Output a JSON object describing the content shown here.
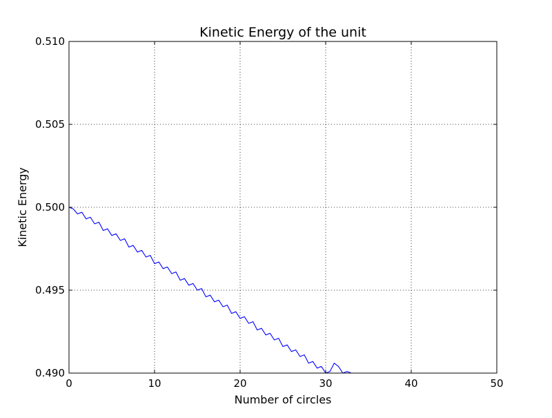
{
  "chart_data": {
    "type": "line",
    "title": "Kinetic Energy of the unit",
    "xlabel": "Number of circles",
    "ylabel": "Kinetic Energy",
    "xlim": [
      0,
      50
    ],
    "ylim": [
      0.49,
      0.51
    ],
    "x_ticks": [
      0,
      10,
      20,
      30,
      40,
      50
    ],
    "x_tick_labels": [
      "0",
      "10",
      "20",
      "30",
      "40",
      "50"
    ],
    "y_ticks": [
      0.49,
      0.495,
      0.5,
      0.505,
      0.51
    ],
    "y_tick_labels": [
      "0.490",
      "0.495",
      "0.500",
      "0.505",
      "0.510"
    ],
    "grid": true,
    "legend": "none",
    "series": [
      {
        "color": "#0000ff",
        "x": [
          0.0,
          0.5,
          1.0,
          1.5,
          2.0,
          2.5,
          3.0,
          3.5,
          4.0,
          4.5,
          5.0,
          5.5,
          6.0,
          6.5,
          7.0,
          7.5,
          8.0,
          8.5,
          9.0,
          9.5,
          10.0,
          10.5,
          11.0,
          11.5,
          12.0,
          12.5,
          13.0,
          13.5,
          14.0,
          14.5,
          15.0,
          15.5,
          16.0,
          16.5,
          17.0,
          17.5,
          18.0,
          18.5,
          19.0,
          19.5,
          20.0,
          20.5,
          21.0,
          21.5,
          22.0,
          22.5,
          23.0,
          23.5,
          24.0,
          24.5,
          25.0,
          25.5,
          26.0,
          26.5,
          27.0,
          27.5,
          28.0,
          28.5,
          29.0,
          29.5,
          30.0,
          30.5,
          31.0,
          31.5,
          32.0,
          32.5,
          33.0
        ],
        "y": [
          0.5,
          0.4999,
          0.4996,
          0.4997,
          0.4993,
          0.4994,
          0.499,
          0.4991,
          0.4986,
          0.4987,
          0.4983,
          0.4984,
          0.498,
          0.4981,
          0.4976,
          0.4977,
          0.4973,
          0.4974,
          0.497,
          0.4971,
          0.4966,
          0.4967,
          0.4963,
          0.4964,
          0.496,
          0.4961,
          0.4956,
          0.4957,
          0.4953,
          0.4954,
          0.495,
          0.4951,
          0.4946,
          0.4947,
          0.4943,
          0.4944,
          0.494,
          0.4941,
          0.4936,
          0.4937,
          0.4933,
          0.4934,
          0.493,
          0.4931,
          0.4926,
          0.4927,
          0.4923,
          0.4924,
          0.492,
          0.4921,
          0.4916,
          0.4917,
          0.4913,
          0.4914,
          0.491,
          0.4911,
          0.4906,
          0.4907,
          0.4903,
          0.4904,
          0.49,
          0.4901,
          0.4906,
          0.4904,
          0.49,
          0.4901,
          0.49
        ]
      }
    ]
  }
}
